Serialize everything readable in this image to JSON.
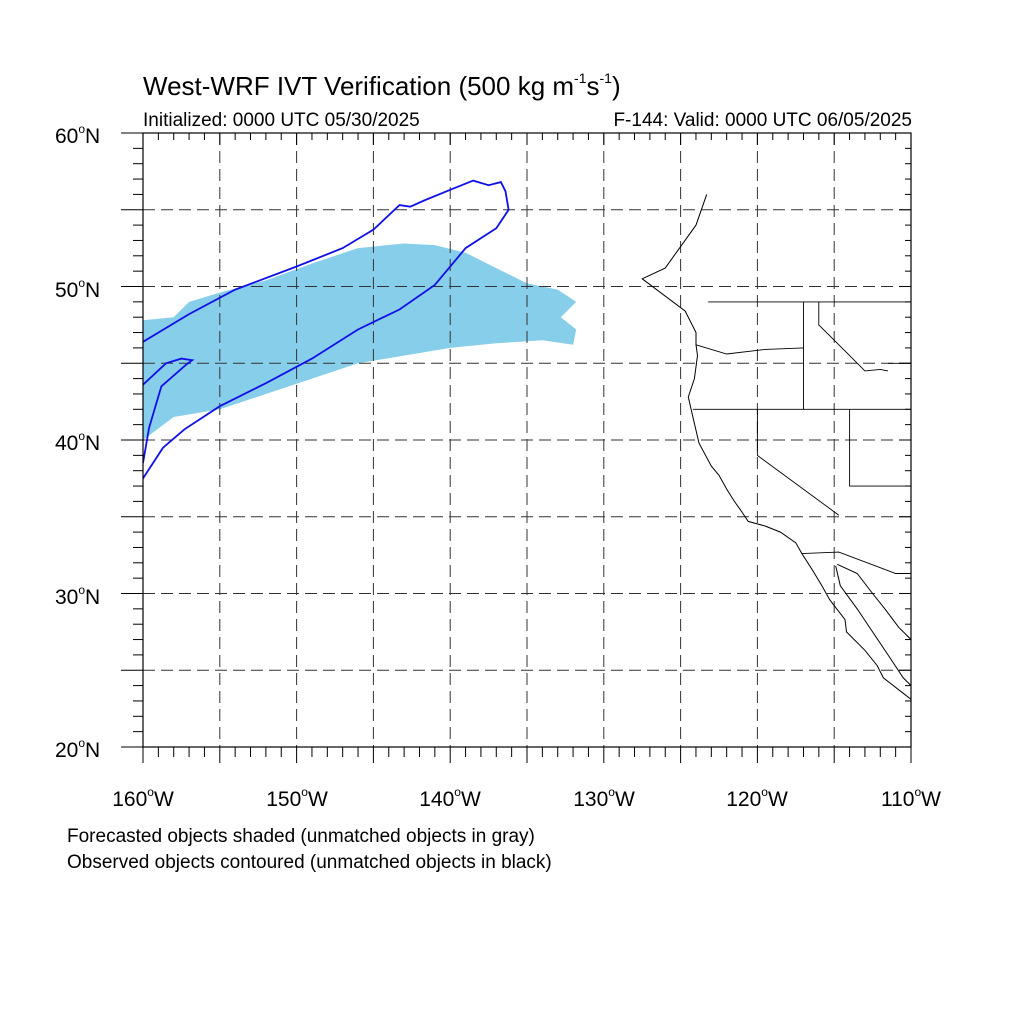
{
  "figure": {
    "title_main": "West-WRF IVT Verification (500 kg m",
    "title_unit_1": "s",
    "title_sup_1": "-1",
    "title_sup_2": "-1",
    "title_close": ")",
    "initialized": "Initialized: 0000 UTC 05/30/2025",
    "valid": "F-144: Valid: 0000 UTC 06/05/2025",
    "footnote_forecast": "Forecasted objects shaded (unmatched objects in gray)",
    "footnote_observed": "Observed objects contoured (unmatched objects in black)"
  },
  "axes": {
    "lat_labels": [
      {
        "deg": "60",
        "hemi": "N"
      },
      {
        "deg": "50",
        "hemi": "N"
      },
      {
        "deg": "40",
        "hemi": "N"
      },
      {
        "deg": "30",
        "hemi": "N"
      },
      {
        "deg": "20",
        "hemi": "N"
      }
    ],
    "lon_labels": [
      {
        "deg": "160",
        "hemi": "W"
      },
      {
        "deg": "150",
        "hemi": "W"
      },
      {
        "deg": "140",
        "hemi": "W"
      },
      {
        "deg": "130",
        "hemi": "W"
      },
      {
        "deg": "120",
        "hemi": "W"
      },
      {
        "deg": "110",
        "hemi": "W"
      }
    ],
    "lon_range": [
      -160,
      -110
    ],
    "lat_range": [
      20,
      60
    ],
    "grid": true
  },
  "colors": {
    "forecast_fill": "#87ceeb",
    "observed_contour": "#1010e6",
    "coastline": "#000000",
    "grid": "#333333"
  },
  "objects": {
    "forecast_object": [
      [
        -160,
        40
      ],
      [
        -158,
        41.5
      ],
      [
        -155,
        42
      ],
      [
        -152,
        43
      ],
      [
        -149,
        44
      ],
      [
        -146,
        45
      ],
      [
        -143,
        45.5
      ],
      [
        -140,
        46
      ],
      [
        -137,
        46.3
      ],
      [
        -134,
        46.5
      ],
      [
        -132,
        46.2
      ],
      [
        -131.8,
        47.2
      ],
      [
        -132.8,
        48
      ],
      [
        -131.8,
        49
      ],
      [
        -133,
        49.8
      ],
      [
        -135,
        50.2
      ],
      [
        -137,
        51.2
      ],
      [
        -139,
        52.2
      ],
      [
        -141,
        52.7
      ],
      [
        -143,
        52.8
      ],
      [
        -146,
        52.5
      ],
      [
        -149,
        51.5
      ],
      [
        -152,
        50.4
      ],
      [
        -155,
        49.6
      ],
      [
        -157,
        49
      ],
      [
        -158,
        48
      ],
      [
        -160,
        47.8
      ]
    ],
    "observed_object": [
      [
        -160,
        46.4
      ],
      [
        -157,
        48.2
      ],
      [
        -154,
        49.8
      ],
      [
        -150,
        51.3
      ],
      [
        -147,
        52.5
      ],
      [
        -145,
        53.7
      ],
      [
        -143.3,
        55.3
      ],
      [
        -142.6,
        55.2
      ],
      [
        -141.7,
        55.6
      ],
      [
        -140,
        56.3
      ],
      [
        -138.5,
        56.9
      ],
      [
        -137.5,
        56.6
      ],
      [
        -136.7,
        56.8
      ],
      [
        -136.4,
        56.2
      ],
      [
        -136.2,
        55
      ],
      [
        -137,
        53.8
      ],
      [
        -139,
        52.5
      ],
      [
        -141,
        50.1
      ],
      [
        -143.3,
        48.5
      ],
      [
        -146,
        47.2
      ],
      [
        -149,
        45.3
      ],
      [
        -152,
        43.7
      ],
      [
        -155,
        42.2
      ],
      [
        -157.3,
        40.7
      ],
      [
        -158.7,
        39.5
      ],
      [
        -160,
        37.5
      ]
    ],
    "observed_inner": [
      [
        -160,
        43.6
      ],
      [
        -158.5,
        45
      ],
      [
        -157.5,
        45.3
      ],
      [
        -156.8,
        45.2
      ],
      [
        -157.2,
        44.9
      ],
      [
        -158.8,
        43.5
      ],
      [
        -159.6,
        40.8
      ],
      [
        -160,
        38.5
      ]
    ]
  },
  "map": {
    "projection": "cylindrical-equidistant",
    "coastline": [
      [
        -123.3,
        56
      ],
      [
        -124,
        54
      ],
      [
        -126,
        51.2
      ],
      [
        -127.5,
        50.5
      ],
      [
        -124.7,
        48.4
      ],
      [
        -124,
        47
      ],
      [
        -124,
        46.2
      ],
      [
        -123.9,
        45.5
      ],
      [
        -124.1,
        44
      ],
      [
        -124.5,
        42.8
      ],
      [
        -124.2,
        41.5
      ],
      [
        -123.8,
        39.8
      ],
      [
        -123,
        38.3
      ],
      [
        -122.5,
        37.7
      ],
      [
        -122,
        36.8
      ],
      [
        -121.5,
        36
      ],
      [
        -121,
        35.3
      ],
      [
        -120.6,
        34.7
      ],
      [
        -119.5,
        34.4
      ],
      [
        -118.5,
        34
      ],
      [
        -117.5,
        33.3
      ],
      [
        -117.1,
        32.6
      ],
      [
        -116.4,
        31.5
      ],
      [
        -115.8,
        30.5
      ],
      [
        -115.3,
        29.6
      ],
      [
        -114.3,
        28.3
      ],
      [
        -114.2,
        27.5
      ],
      [
        -113,
        26.3
      ],
      [
        -112.2,
        25.3
      ],
      [
        -111.8,
        24.5
      ],
      [
        -110.5,
        23.5
      ],
      [
        -110,
        23.1
      ]
    ],
    "gulf_coast": [
      [
        -114.9,
        31.8
      ],
      [
        -114.6,
        30.5
      ],
      [
        -113.5,
        29
      ],
      [
        -112.5,
        27.5
      ],
      [
        -111.5,
        26
      ],
      [
        -110.5,
        24.5
      ],
      [
        -110,
        24
      ]
    ],
    "mainland_coast": [
      [
        -114.8,
        31.9
      ],
      [
        -113.5,
        31.3
      ],
      [
        -112.5,
        30
      ],
      [
        -111.7,
        29
      ],
      [
        -110.8,
        27.8
      ],
      [
        -110,
        27
      ]
    ],
    "state_lines": [
      [
        [
          -123.2,
          49
        ],
        [
          -110,
          49
        ]
      ],
      [
        [
          -124,
          46.2
        ],
        [
          -122,
          45.6
        ],
        [
          -119.5,
          45.9
        ],
        [
          -117,
          46
        ]
      ],
      [
        [
          -117,
          49
        ],
        [
          -117,
          42
        ]
      ],
      [
        [
          -124.2,
          42
        ],
        [
          -110,
          42
        ]
      ],
      [
        [
          -120,
          42
        ],
        [
          -120,
          39
        ],
        [
          -114.7,
          35.1
        ]
      ],
      [
        [
          -114,
          42
        ],
        [
          -114,
          37
        ],
        [
          -110,
          37
        ]
      ],
      [
        [
          -111.5,
          45
        ],
        [
          -110,
          45
        ],
        [
          -110,
          41
        ]
      ],
      [
        [
          -116,
          49
        ],
        [
          -116,
          47.5
        ],
        [
          -115,
          46.5
        ],
        [
          -114,
          45.5
        ],
        [
          -113,
          44.5
        ],
        [
          -112,
          44.6
        ],
        [
          -111.5,
          44.5
        ]
      ],
      [
        [
          -117.1,
          32.6
        ],
        [
          -114.7,
          32.7
        ],
        [
          -111,
          31.3
        ],
        [
          -110,
          31.3
        ]
      ]
    ]
  }
}
